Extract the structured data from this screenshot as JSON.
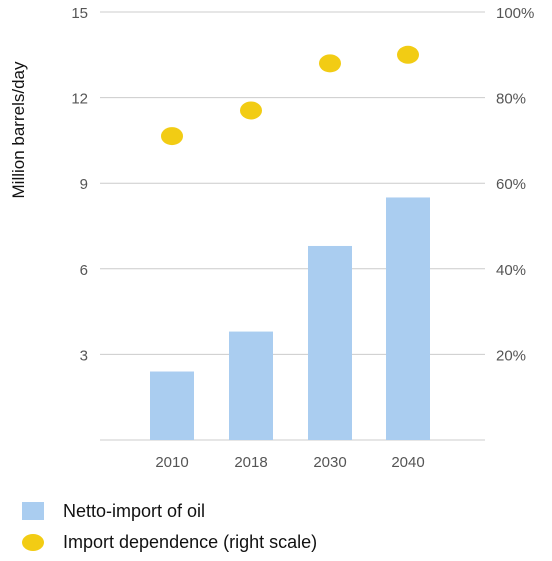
{
  "chart_data": {
    "type": "bar",
    "categories": [
      "2010",
      "2018",
      "2030",
      "2040"
    ],
    "series": [
      {
        "name": "Netto-import of oil",
        "kind": "bar",
        "axis": "left",
        "values": [
          2.4,
          3.8,
          6.8,
          8.5
        ]
      },
      {
        "name": "Import dependence (right scale)",
        "kind": "scatter",
        "axis": "right",
        "values": [
          71,
          77,
          88,
          90
        ]
      }
    ],
    "ylabel": "Million barrels/day",
    "ylim": [
      0,
      15
    ],
    "yticks": [
      "3",
      "6",
      "9",
      "12",
      "15"
    ],
    "y2lim": [
      0,
      100
    ],
    "y2ticks": [
      "20%",
      "40%",
      "60%",
      "80%",
      "100%"
    ],
    "grid": true,
    "legend_position": "bottom-left",
    "colors": {
      "bar": "#aacdf0",
      "dot": "#f2cc14",
      "grid": "#cccccc",
      "text": "#555555"
    }
  },
  "legend": {
    "bar_label": "Netto-import of oil",
    "dot_label": "Import dependence (right scale)"
  }
}
